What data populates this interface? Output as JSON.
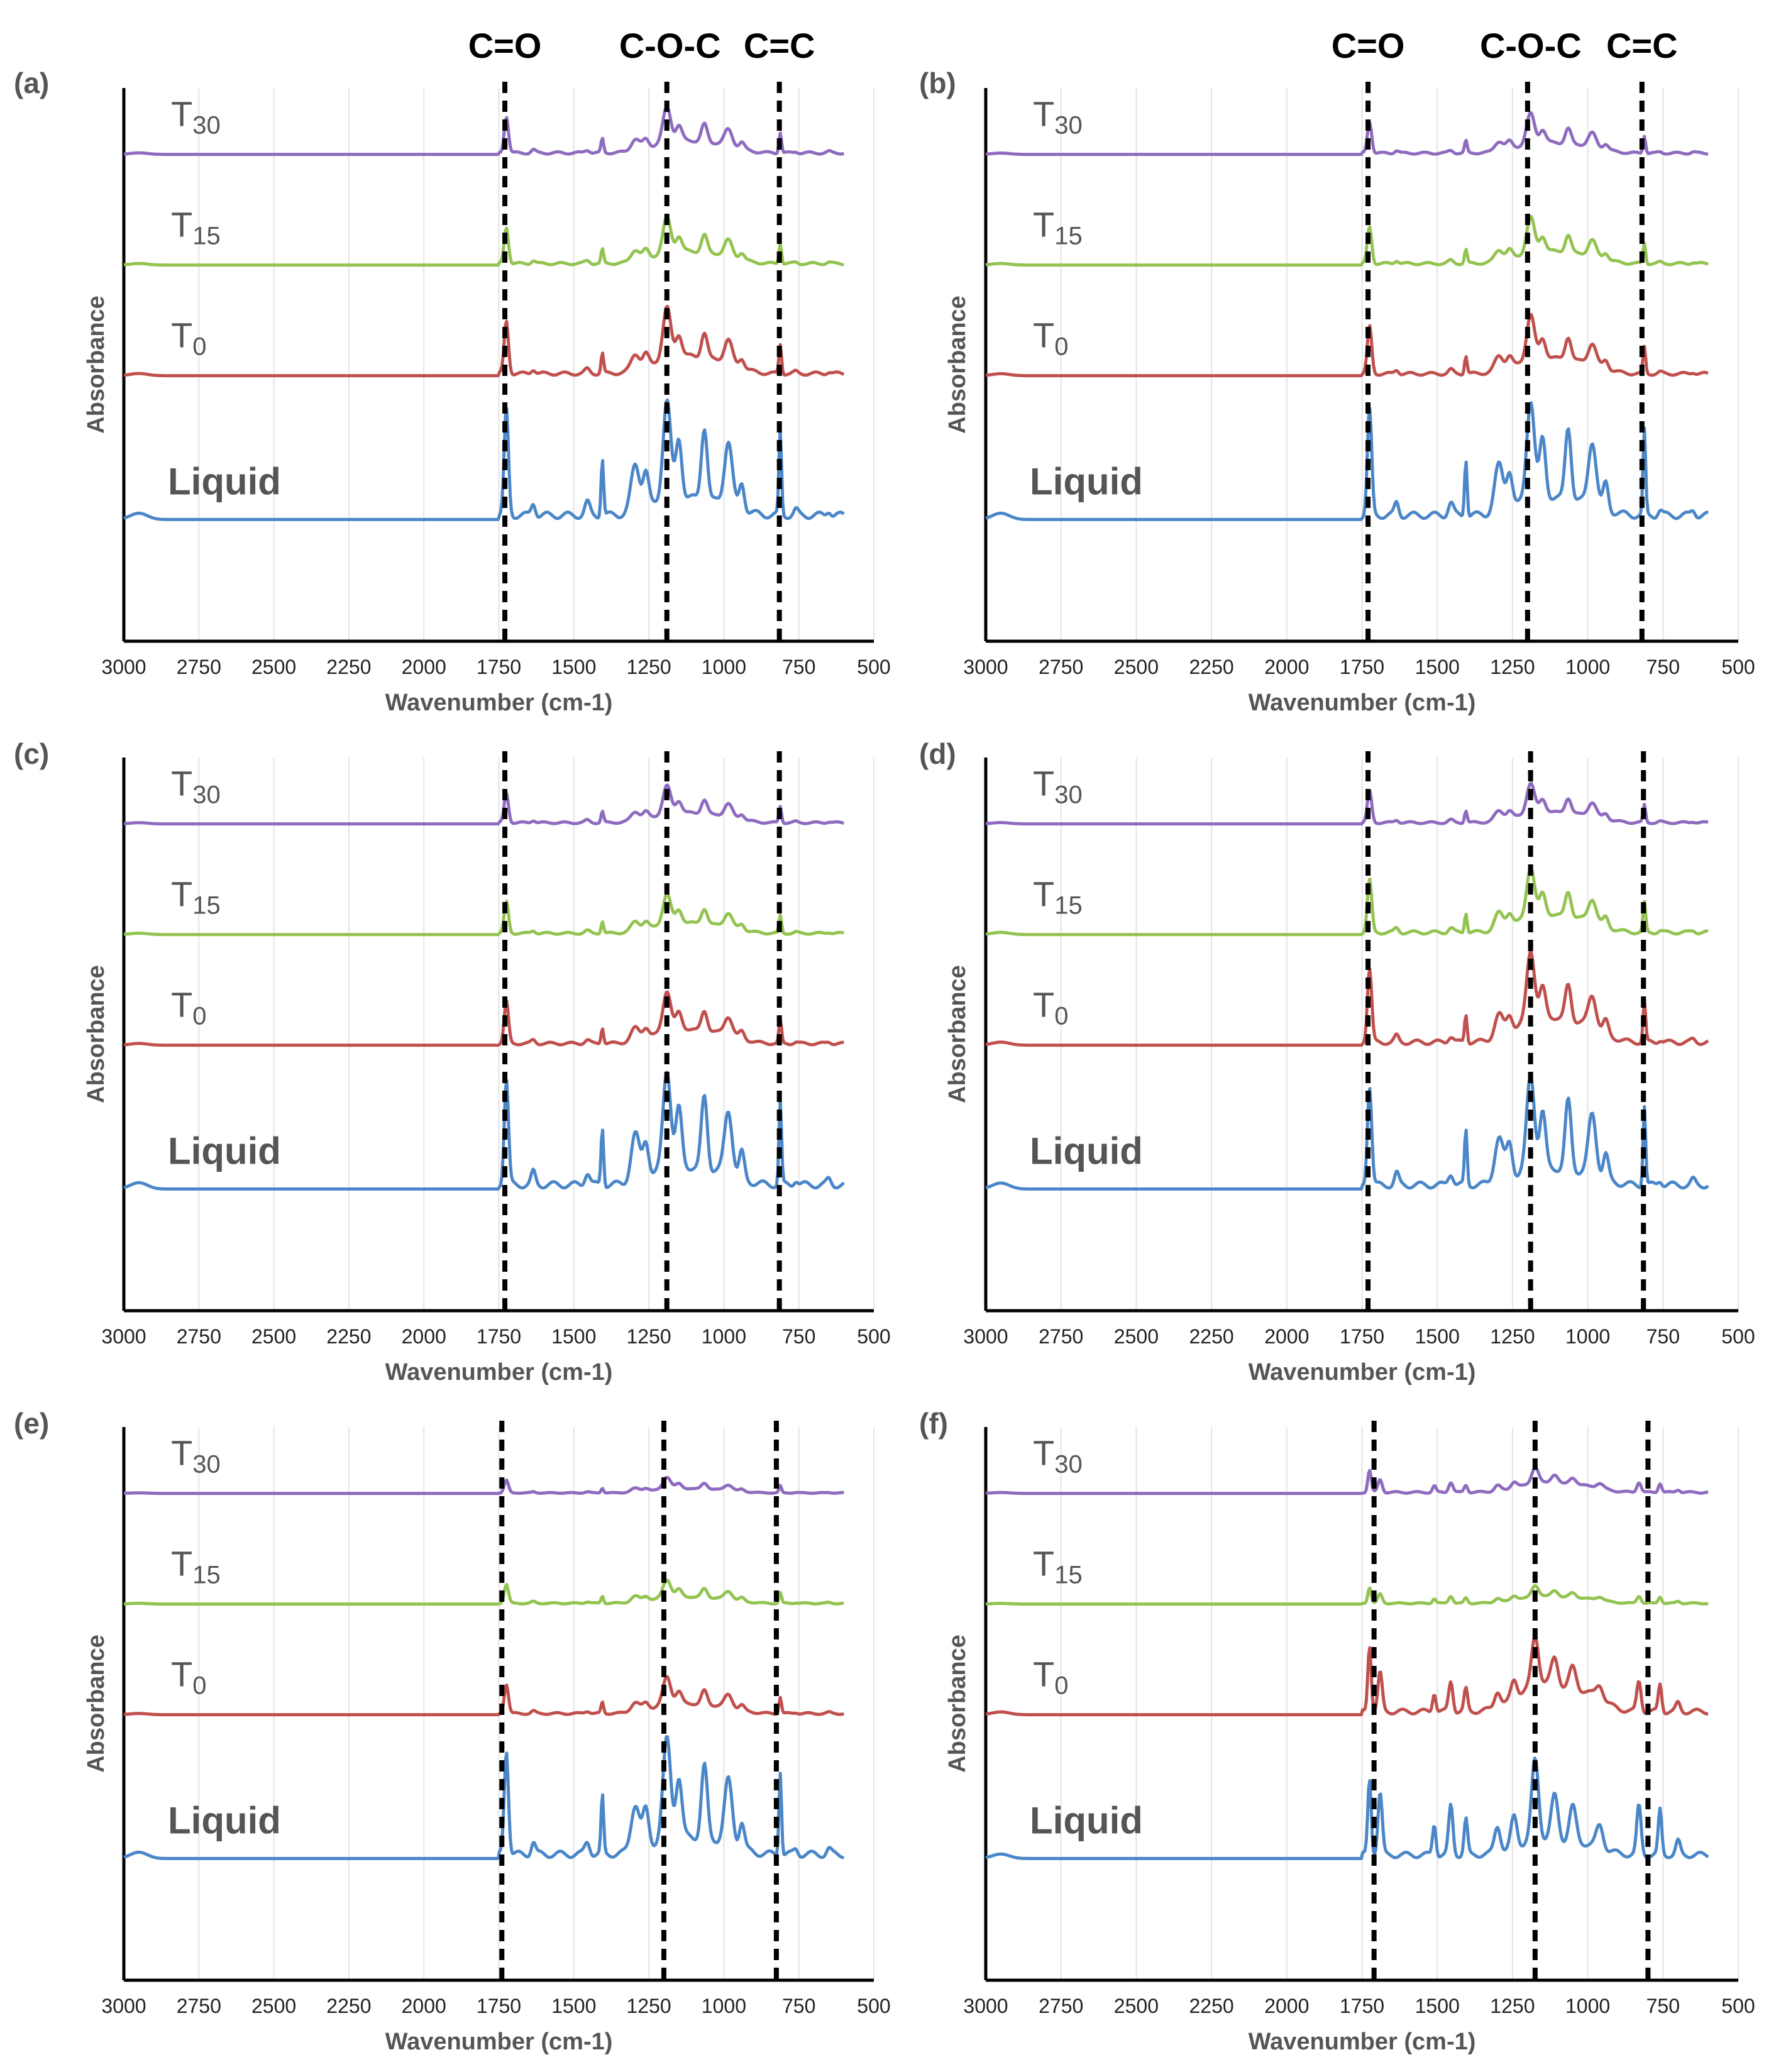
{
  "chart_data": [
    {
      "panel": "(a)",
      "type": "line",
      "xlabel": "Wavenumber (cm-1)",
      "ylabel": "Absorbance",
      "xlim": [
        3000,
        500
      ],
      "x_ticks": [
        "3000",
        "2750",
        "2500",
        "2250",
        "2000",
        "1750",
        "1500",
        "1250",
        "1000",
        "750",
        "500"
      ],
      "band_labels": [
        "C=O",
        "C-O-C",
        "C=C"
      ],
      "band_positions": [
        1730,
        1190,
        815
      ],
      "series": [
        {
          "name": "T30",
          "label_main": "T",
          "label_sub": "30",
          "color": "#8e6bbf",
          "offset": 3.0,
          "scale": 0.35
        },
        {
          "name": "T15",
          "label_main": "T",
          "label_sub": "15",
          "color": "#93c350",
          "offset": 2.0,
          "scale": 0.35
        },
        {
          "name": "T0",
          "label_main": "T",
          "label_sub": "0",
          "color": "#c0504d",
          "offset": 1.0,
          "scale": 0.5
        },
        {
          "name": "Liquid",
          "label_main": "Liquid",
          "label_sub": "",
          "color": "#4a86c8",
          "offset": 0.0,
          "scale": 1.0
        }
      ]
    },
    {
      "panel": "(b)",
      "type": "line",
      "xlabel": "Wavenumber (cm-1)",
      "ylabel": "Absorbance",
      "xlim": [
        3000,
        500
      ],
      "x_ticks": [
        "3000",
        "2750",
        "2500",
        "2250",
        "2000",
        "1750",
        "1500",
        "1250",
        "1000",
        "750",
        "500"
      ],
      "band_labels": [
        "C=O",
        "C-O-C",
        "C=C"
      ],
      "band_positions": [
        1730,
        1200,
        820
      ],
      "series": [
        {
          "name": "T30",
          "label_main": "T",
          "label_sub": "30",
          "color": "#8e6bbf",
          "offset": 3.0,
          "scale": 0.3
        },
        {
          "name": "T15",
          "label_main": "T",
          "label_sub": "15",
          "color": "#93c350",
          "offset": 2.0,
          "scale": 0.35
        },
        {
          "name": "T0",
          "label_main": "T",
          "label_sub": "0",
          "color": "#c0504d",
          "offset": 1.0,
          "scale": 0.45
        },
        {
          "name": "Liquid",
          "label_main": "Liquid",
          "label_sub": "",
          "color": "#4a86c8",
          "offset": 0.0,
          "scale": 1.0
        }
      ]
    },
    {
      "panel": "(c)",
      "type": "line",
      "xlabel": "Wavenumber (cm-1)",
      "ylabel": "Absorbance",
      "xlim": [
        3000,
        500
      ],
      "x_ticks": [
        "3000",
        "2750",
        "2500",
        "2250",
        "2000",
        "1750",
        "1500",
        "1250",
        "1000",
        "750",
        "500"
      ],
      "band_labels": [],
      "band_positions": [
        1730,
        1190,
        815
      ],
      "series": [
        {
          "name": "T30",
          "label_main": "T",
          "label_sub": "30",
          "color": "#8e6bbf",
          "offset": 3.0,
          "scale": 0.28
        },
        {
          "name": "T15",
          "label_main": "T",
          "label_sub": "15",
          "color": "#93c350",
          "offset": 2.0,
          "scale": 0.3
        },
        {
          "name": "T0",
          "label_main": "T",
          "label_sub": "0",
          "color": "#c0504d",
          "offset": 1.0,
          "scale": 0.4
        },
        {
          "name": "Liquid",
          "label_main": "Liquid",
          "label_sub": "",
          "color": "#4a86c8",
          "offset": 0.0,
          "scale": 1.0
        }
      ]
    },
    {
      "panel": "(d)",
      "type": "line",
      "xlabel": "Wavenumber (cm-1)",
      "ylabel": "Absorbance",
      "xlim": [
        3000,
        500
      ],
      "x_ticks": [
        "3000",
        "2750",
        "2500",
        "2250",
        "2000",
        "1750",
        "1500",
        "1250",
        "1000",
        "750",
        "500"
      ],
      "band_labels": [],
      "band_positions": [
        1730,
        1190,
        815
      ],
      "series": [
        {
          "name": "T30",
          "label_main": "T",
          "label_sub": "30",
          "color": "#8e6bbf",
          "offset": 3.0,
          "scale": 0.3
        },
        {
          "name": "T15",
          "label_main": "T",
          "label_sub": "15",
          "color": "#93c350",
          "offset": 2.0,
          "scale": 0.5
        },
        {
          "name": "T0",
          "label_main": "T",
          "label_sub": "0",
          "color": "#c0504d",
          "offset": 1.0,
          "scale": 0.7
        },
        {
          "name": "Liquid",
          "label_main": "Liquid",
          "label_sub": "",
          "color": "#4a86c8",
          "offset": 0.0,
          "scale": 0.95
        }
      ]
    },
    {
      "panel": "(e)",
      "type": "line",
      "xlabel": "Wavenumber (cm-1)",
      "ylabel": "Absorbance",
      "xlim": [
        3000,
        500
      ],
      "x_ticks": [
        "3000",
        "2750",
        "2500",
        "2250",
        "2000",
        "1750",
        "1500",
        "1250",
        "1000",
        "750",
        "500"
      ],
      "band_labels": [],
      "band_positions": [
        1740,
        1200,
        825
      ],
      "series": [
        {
          "name": "T30",
          "label_main": "T",
          "label_sub": "30",
          "color": "#8e6bbf",
          "offset": 3.0,
          "scale": 0.12
        },
        {
          "name": "T15",
          "label_main": "T",
          "label_sub": "15",
          "color": "#93c350",
          "offset": 2.0,
          "scale": 0.18
        },
        {
          "name": "T0",
          "label_main": "T",
          "label_sub": "0",
          "color": "#c0504d",
          "offset": 1.0,
          "scale": 0.28
        },
        {
          "name": "Liquid",
          "label_main": "Liquid",
          "label_sub": "",
          "color": "#4a86c8",
          "offset": 0.0,
          "scale": 1.0
        }
      ]
    },
    {
      "panel": "(f)",
      "type": "line",
      "xlabel": "Wavenumber (cm-1)",
      "ylabel": "Absorbance",
      "xlim": [
        3000,
        500
      ],
      "x_ticks": [
        "3000",
        "2750",
        "2500",
        "2250",
        "2000",
        "1750",
        "1500",
        "1250",
        "1000",
        "750",
        "500"
      ],
      "band_labels": [],
      "band_positions": [
        1710,
        1175,
        800
      ],
      "series": [
        {
          "name": "T30",
          "label_main": "T",
          "label_sub": "30",
          "color": "#8e6bbf",
          "offset": 3.0,
          "scale": 0.25
        },
        {
          "name": "T15",
          "label_main": "T",
          "label_sub": "15",
          "color": "#93c350",
          "offset": 2.0,
          "scale": 0.18
        },
        {
          "name": "T0",
          "label_main": "T",
          "label_sub": "0",
          "color": "#c0504d",
          "offset": 1.0,
          "scale": 0.75
        },
        {
          "name": "Liquid",
          "label_main": "Liquid",
          "label_sub": "",
          "color": "#4a86c8",
          "offset": 0.0,
          "scale": 0.85
        }
      ]
    }
  ]
}
